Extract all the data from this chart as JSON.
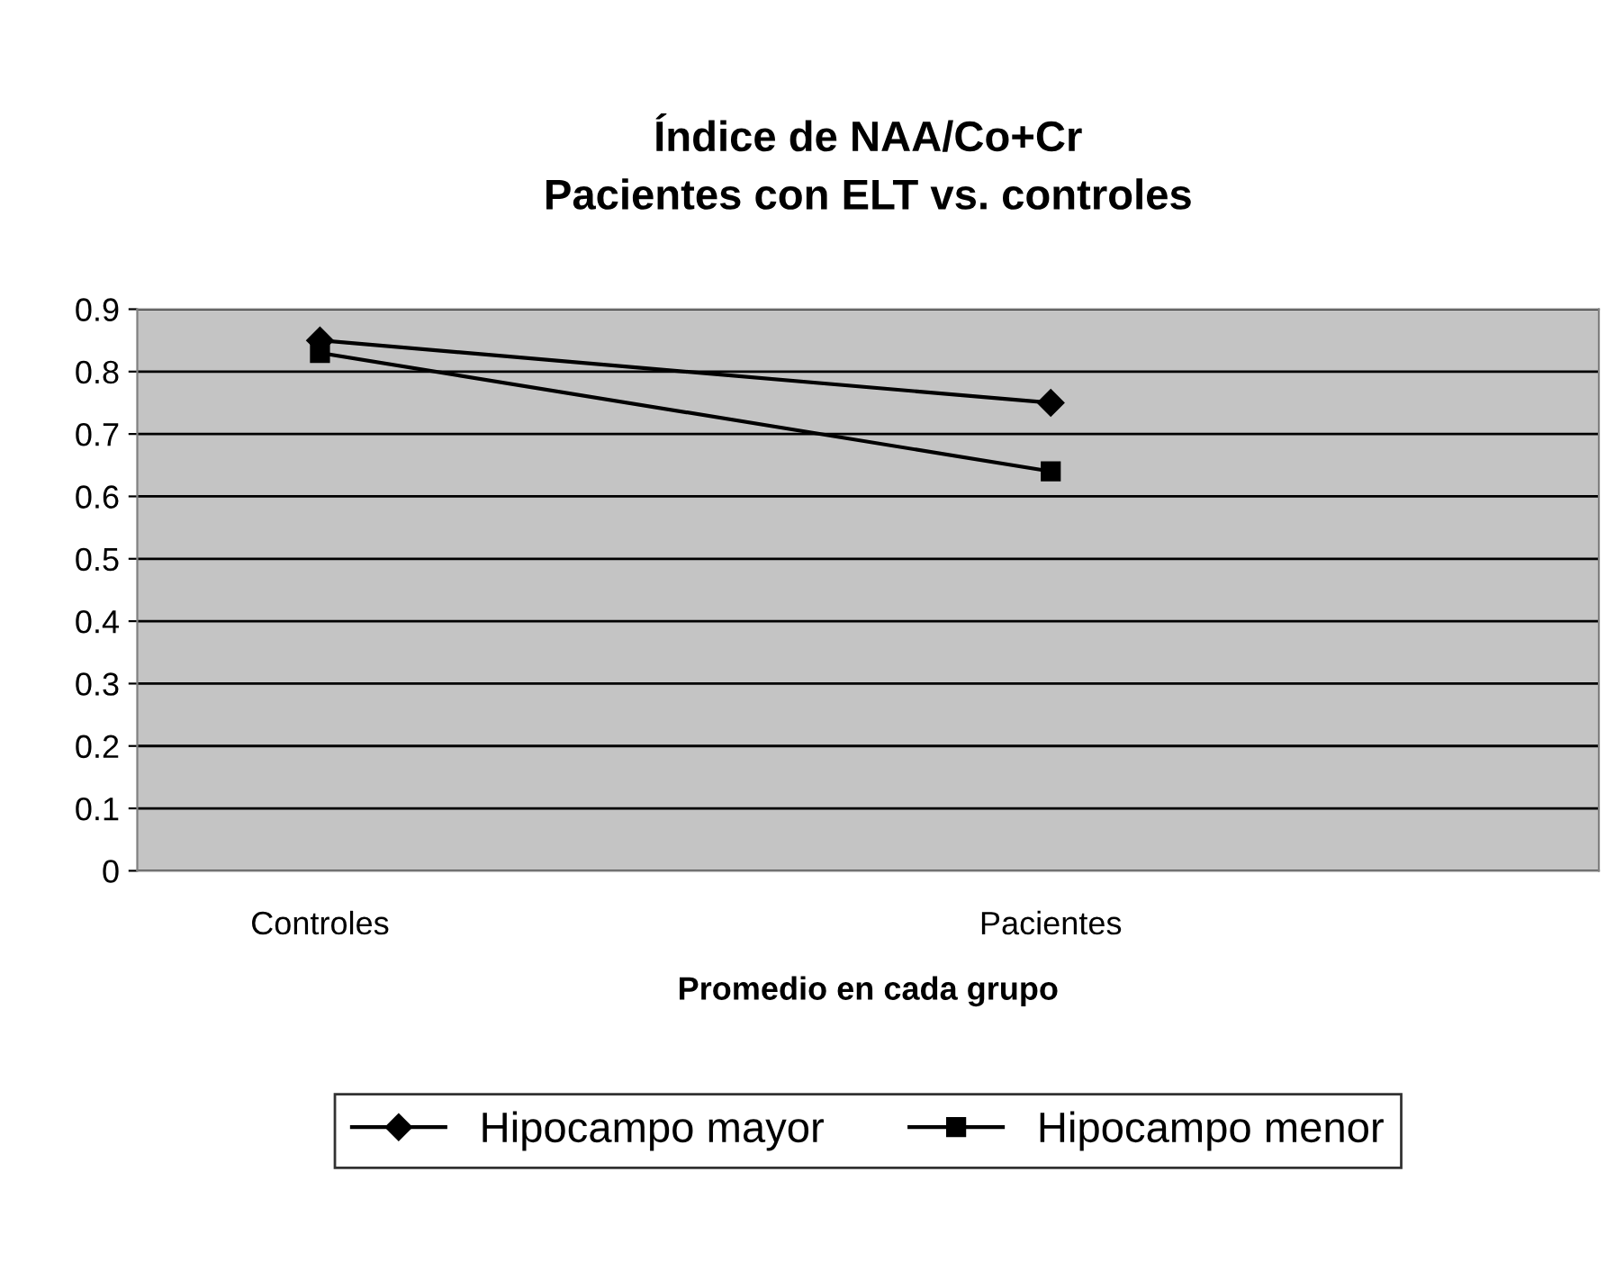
{
  "chart_data": {
    "type": "line",
    "title": "Índice de NAA/Co+Cr\nPacientes con ELT vs. controles",
    "xlabel": "Promedio en cada grupo",
    "categories": [
      "Controles",
      "Pacientes"
    ],
    "series": [
      {
        "name": "Hipocampo mayor",
        "color": "#000000",
        "marker": "diamond",
        "values": [
          0.85,
          0.75
        ]
      },
      {
        "name": "Hipocampo menor",
        "color": "#000000",
        "marker": "square",
        "values": [
          0.83,
          0.64
        ]
      }
    ],
    "ylim": [
      0,
      0.9
    ],
    "yticks": [
      0,
      0.1,
      0.2,
      0.3,
      0.4,
      0.5,
      0.6,
      0.7,
      0.8,
      0.9
    ],
    "grid": "y",
    "legend": "bottom",
    "line_style": "solid"
  }
}
